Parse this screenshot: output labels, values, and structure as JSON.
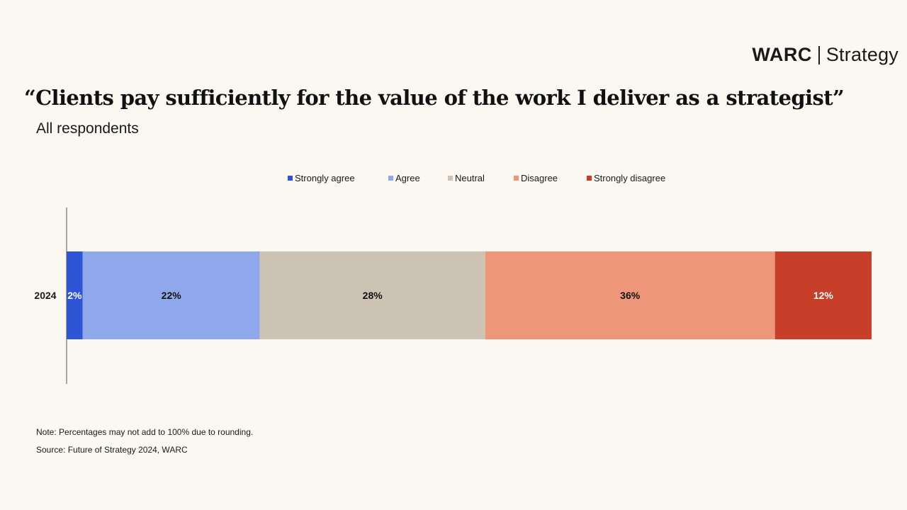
{
  "brand": {
    "main": "WARC",
    "sub": "Strategy"
  },
  "title": "“Clients pay sufficiently for the value of the work I deliver as a strategist”",
  "subtitle": "All respondents",
  "notes": {
    "note": "Note: Percentages may not add to 100% due to rounding.",
    "source": "Source: Future of Strategy 2024, WARC"
  },
  "colors": {
    "background": "#fbf8f1",
    "strongly_agree": "#2e55d6",
    "agree": "#8fa8eb",
    "neutral": "#cdc3b4",
    "disagree": "#ed9679",
    "strongly_disagree": "#c73e29"
  },
  "chart_data": {
    "type": "bar",
    "orientation": "horizontal",
    "stacked": true,
    "categories": [
      "2024"
    ],
    "xlim": [
      0,
      100
    ],
    "grid": false,
    "legend_position": "top-center",
    "series": [
      {
        "name": "Strongly agree",
        "values": [
          2
        ],
        "labels": [
          "2%"
        ],
        "color": "#2e55d6",
        "label_color": "#ffffff"
      },
      {
        "name": "Agree",
        "values": [
          22
        ],
        "labels": [
          "22%"
        ],
        "color": "#8fa8eb",
        "label_color": "#111111"
      },
      {
        "name": "Neutral",
        "values": [
          28
        ],
        "labels": [
          "28%"
        ],
        "color": "#cdc3b4",
        "label_color": "#111111"
      },
      {
        "name": "Disagree",
        "values": [
          36
        ],
        "labels": [
          "36%"
        ],
        "color": "#ed9679",
        "label_color": "#111111"
      },
      {
        "name": "Strongly disagree",
        "values": [
          12
        ],
        "labels": [
          "12%"
        ],
        "color": "#c73e29",
        "label_color": "#ffffff"
      }
    ]
  }
}
